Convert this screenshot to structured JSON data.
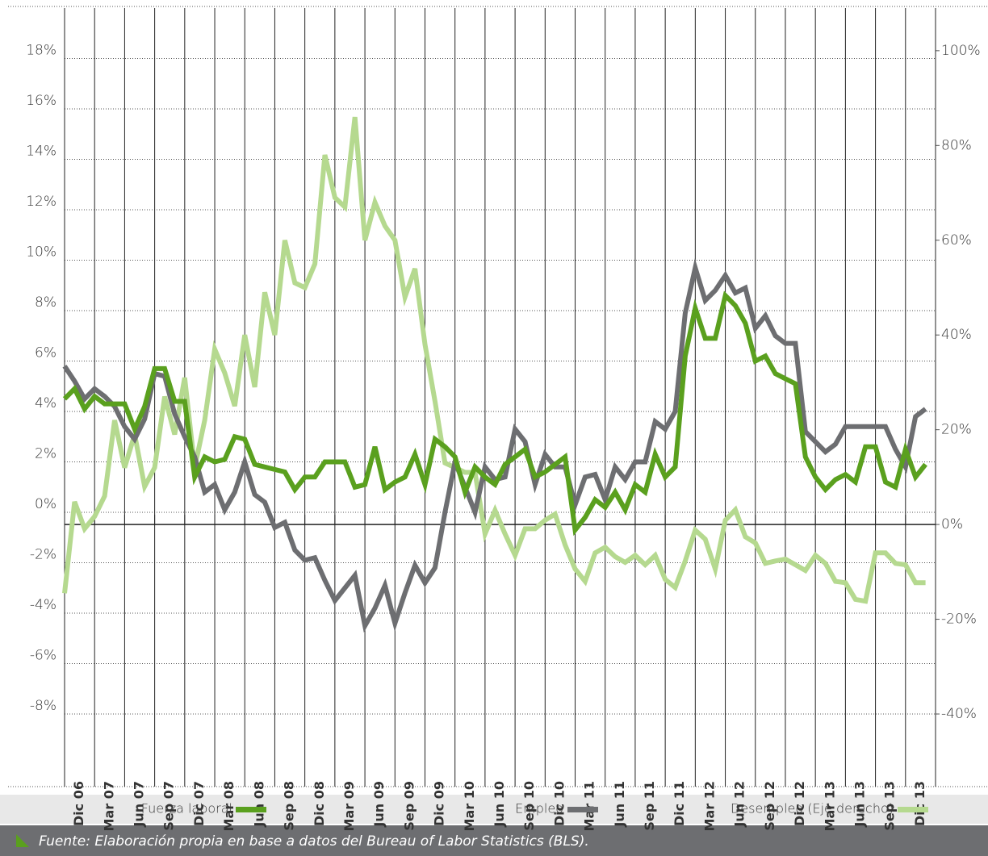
{
  "chart_data": {
    "type": "line",
    "source": "Fuente: Elaboración propia en base a datos del Bureau of Labor Statistics (BLS).",
    "categories": [
      "Dic 06",
      null,
      null,
      "Mar 07",
      null,
      null,
      "Jun 07",
      null,
      null,
      "Sep 07",
      null,
      null,
      "Dic 07",
      null,
      null,
      "Mar 08",
      null,
      null,
      "Jun 08",
      null,
      null,
      "Sep 08",
      null,
      null,
      "Dic 08",
      null,
      null,
      "Mar 09",
      null,
      null,
      "Jun 09",
      null,
      null,
      "Sep 09",
      null,
      null,
      "Dic 09",
      null,
      null,
      "Mar 10",
      null,
      null,
      "Jun 10",
      null,
      null,
      "Sep 10",
      null,
      null,
      "Dic 10",
      null,
      null,
      "Mar 11",
      null,
      null,
      "Jun 11",
      null,
      null,
      "Sep 11",
      null,
      null,
      "Dic 11",
      null,
      null,
      "Mar 12",
      null,
      null,
      "Jun 12",
      null,
      null,
      "Sep 12",
      null,
      null,
      "Dic 12",
      null,
      null,
      "Mar 13",
      null,
      null,
      "Jun 13",
      null,
      null,
      "Sep 13",
      null,
      null,
      "Dic 13",
      null,
      null
    ],
    "series": [
      {
        "name": "Fuerza laboral",
        "color": "#5aa01e",
        "values": [
          4.5,
          4.9,
          4.1,
          4.6,
          4.3,
          4.3,
          4.3,
          3.3,
          4.2,
          5.7,
          5.7,
          4.4,
          4.4,
          1.4,
          2.2,
          2.0,
          2.1,
          3.0,
          2.9,
          1.9,
          1.8,
          1.7,
          1.6,
          0.9,
          1.4,
          1.4,
          2.0,
          2.0,
          2.0,
          1.0,
          1.1,
          2.6,
          0.9,
          1.2,
          1.4,
          2.3,
          1.1,
          2.9,
          2.6,
          2.2,
          0.8,
          1.8,
          1.4,
          1.1,
          1.9,
          2.2,
          2.5,
          1.4,
          1.6,
          1.9,
          2.2,
          -0.7,
          -0.2,
          0.5,
          0.2,
          0.8,
          0.1,
          1.1,
          0.8,
          2.3,
          1.4,
          1.8,
          6.2,
          8.1,
          6.9,
          6.9,
          8.6,
          8.2,
          7.5,
          6.0,
          6.2,
          5.5,
          5.3,
          5.1,
          2.2,
          1.4,
          0.9,
          1.3,
          1.5,
          1.2,
          2.6,
          2.6,
          1.2,
          1.0,
          2.5,
          1.4,
          1.9
        ]
      },
      {
        "name": "Empleo",
        "color": "#6d6e71",
        "values": [
          5.8,
          5.2,
          4.5,
          4.9,
          4.6,
          4.2,
          3.4,
          2.9,
          3.7,
          5.5,
          5.4,
          3.9,
          3.0,
          2.2,
          0.8,
          1.1,
          0.1,
          0.8,
          2.0,
          0.7,
          0.4,
          -0.6,
          -0.4,
          -1.5,
          -1.9,
          -1.8,
          -2.7,
          -3.5,
          -3.0,
          -2.5,
          -4.5,
          -3.8,
          -2.9,
          -4.4,
          -3.2,
          -2.1,
          -2.8,
          -2.2,
          0.0,
          2.0,
          1.0,
          0.0,
          1.8,
          1.3,
          1.4,
          3.3,
          2.8,
          1.1,
          2.3,
          1.8,
          1.8,
          0.3,
          1.4,
          1.5,
          0.5,
          1.8,
          1.3,
          2.0,
          2.0,
          3.6,
          3.3,
          4.0,
          7.9,
          9.7,
          8.4,
          8.8,
          9.4,
          8.7,
          8.9,
          7.3,
          7.8,
          7.0,
          6.7,
          6.7,
          3.2,
          2.8,
          2.4,
          2.7,
          3.4,
          3.4,
          3.4,
          3.4,
          3.4,
          2.5,
          1.8,
          3.8,
          4.1
        ]
      },
      {
        "name": "Desempleo (Eje derecho)",
        "color": "#b5d98f",
        "axis": "y2",
        "values": [
          -14.5,
          4.8,
          -0.9,
          1.7,
          6.0,
          22,
          12,
          19,
          8,
          12,
          27,
          19,
          31,
          12,
          22,
          37,
          32,
          25,
          40,
          29,
          49,
          40,
          60,
          51,
          50,
          55,
          78,
          69,
          67,
          86,
          60,
          68,
          63,
          60,
          48,
          54,
          38,
          26,
          13,
          12,
          11,
          11,
          -2,
          3,
          -2,
          -6.5,
          -0.9,
          -0.9,
          0.9,
          2.2,
          -4.3,
          -9.4,
          -12,
          -6,
          -4.8,
          -6.8,
          -8,
          -6.5,
          -8.5,
          -6.5,
          -11.6,
          -13.3,
          -7.7,
          -1.2,
          -3.1,
          -9.4,
          0.9,
          3.1,
          -2.6,
          -3.9,
          -8.2,
          -7.7,
          -7.3,
          -8.5,
          -9.7,
          -6.5,
          -8.2,
          -12,
          -12.3,
          -15.8,
          -16.2,
          -6,
          -6,
          -8.2,
          -8.5,
          -12.3,
          -12.3
        ]
      }
    ],
    "ylim": [
      -8,
      20
    ],
    "yticks": [
      {
        "value": -8,
        "label": "-8%"
      },
      {
        "value": -6,
        "label": "-6%"
      },
      {
        "value": -4,
        "label": "-4%"
      },
      {
        "value": -2,
        "label": "-2%"
      },
      {
        "value": 0,
        "label": "0%"
      },
      {
        "value": 2,
        "label": "2%"
      },
      {
        "value": 4,
        "label": "4%"
      },
      {
        "value": 6,
        "label": "6%"
      },
      {
        "value": 8,
        "label": "8%"
      },
      {
        "value": 10,
        "label": "10%"
      },
      {
        "value": 12,
        "label": "12%"
      },
      {
        "value": 14,
        "label": "14%"
      },
      {
        "value": 16,
        "label": "16%"
      },
      {
        "value": 18,
        "label": "18%"
      }
    ],
    "y2lim": [
      -40,
      109
    ],
    "y2ticks": [
      {
        "value": -40,
        "label": "-40%"
      },
      {
        "value": -20,
        "label": "-20%"
      },
      {
        "value": 0,
        "label": "0%"
      },
      {
        "value": 20,
        "label": "20%"
      },
      {
        "value": 40,
        "label": "40%"
      },
      {
        "value": 60,
        "label": "60%"
      },
      {
        "value": 80,
        "label": "80%"
      },
      {
        "value": 100,
        "label": "100%"
      }
    ],
    "grid": true
  }
}
